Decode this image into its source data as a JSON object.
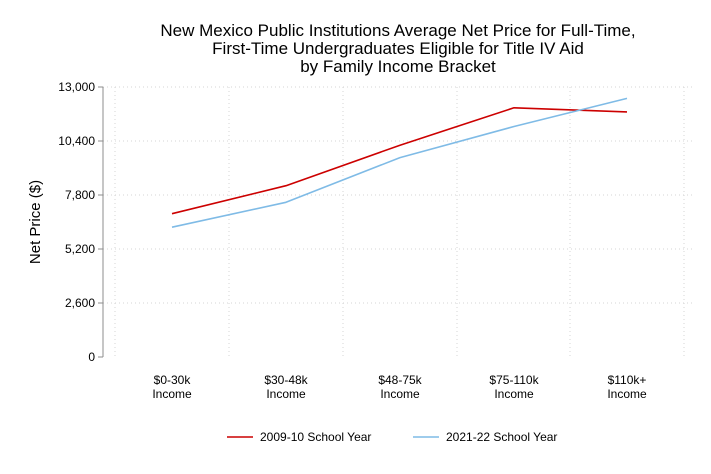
{
  "chart_data": {
    "type": "line",
    "title_lines": [
      "New Mexico Public Institutions Average Net Price for Full-Time,",
      "First-Time Undergraduates Eligible for Title IV Aid",
      "by Family Income Bracket"
    ],
    "xlabel": "",
    "ylabel": "Net Price ($)",
    "categories": [
      [
        "$0-30k",
        "Income"
      ],
      [
        "$30-48k",
        "Income"
      ],
      [
        "$48-75k",
        "Income"
      ],
      [
        "$75-110k",
        "Income"
      ],
      [
        "$110k+",
        "Income"
      ]
    ],
    "ylim": [
      0,
      13000
    ],
    "yticks": [
      0,
      2600,
      5200,
      7800,
      10400,
      13000
    ],
    "ytick_labels": [
      "0",
      "2,600",
      "5,200",
      "7,800",
      "10,400",
      "13,000"
    ],
    "grid": true,
    "legend_position": "bottom",
    "series": [
      {
        "name": "2009-10 School Year",
        "color": "#cc0000",
        "values": [
          6900,
          8250,
          10200,
          12000,
          11800
        ]
      },
      {
        "name": "2021-22 School Year",
        "color": "#7fbbe6",
        "values": [
          6250,
          7450,
          9600,
          11100,
          12450
        ]
      }
    ]
  }
}
